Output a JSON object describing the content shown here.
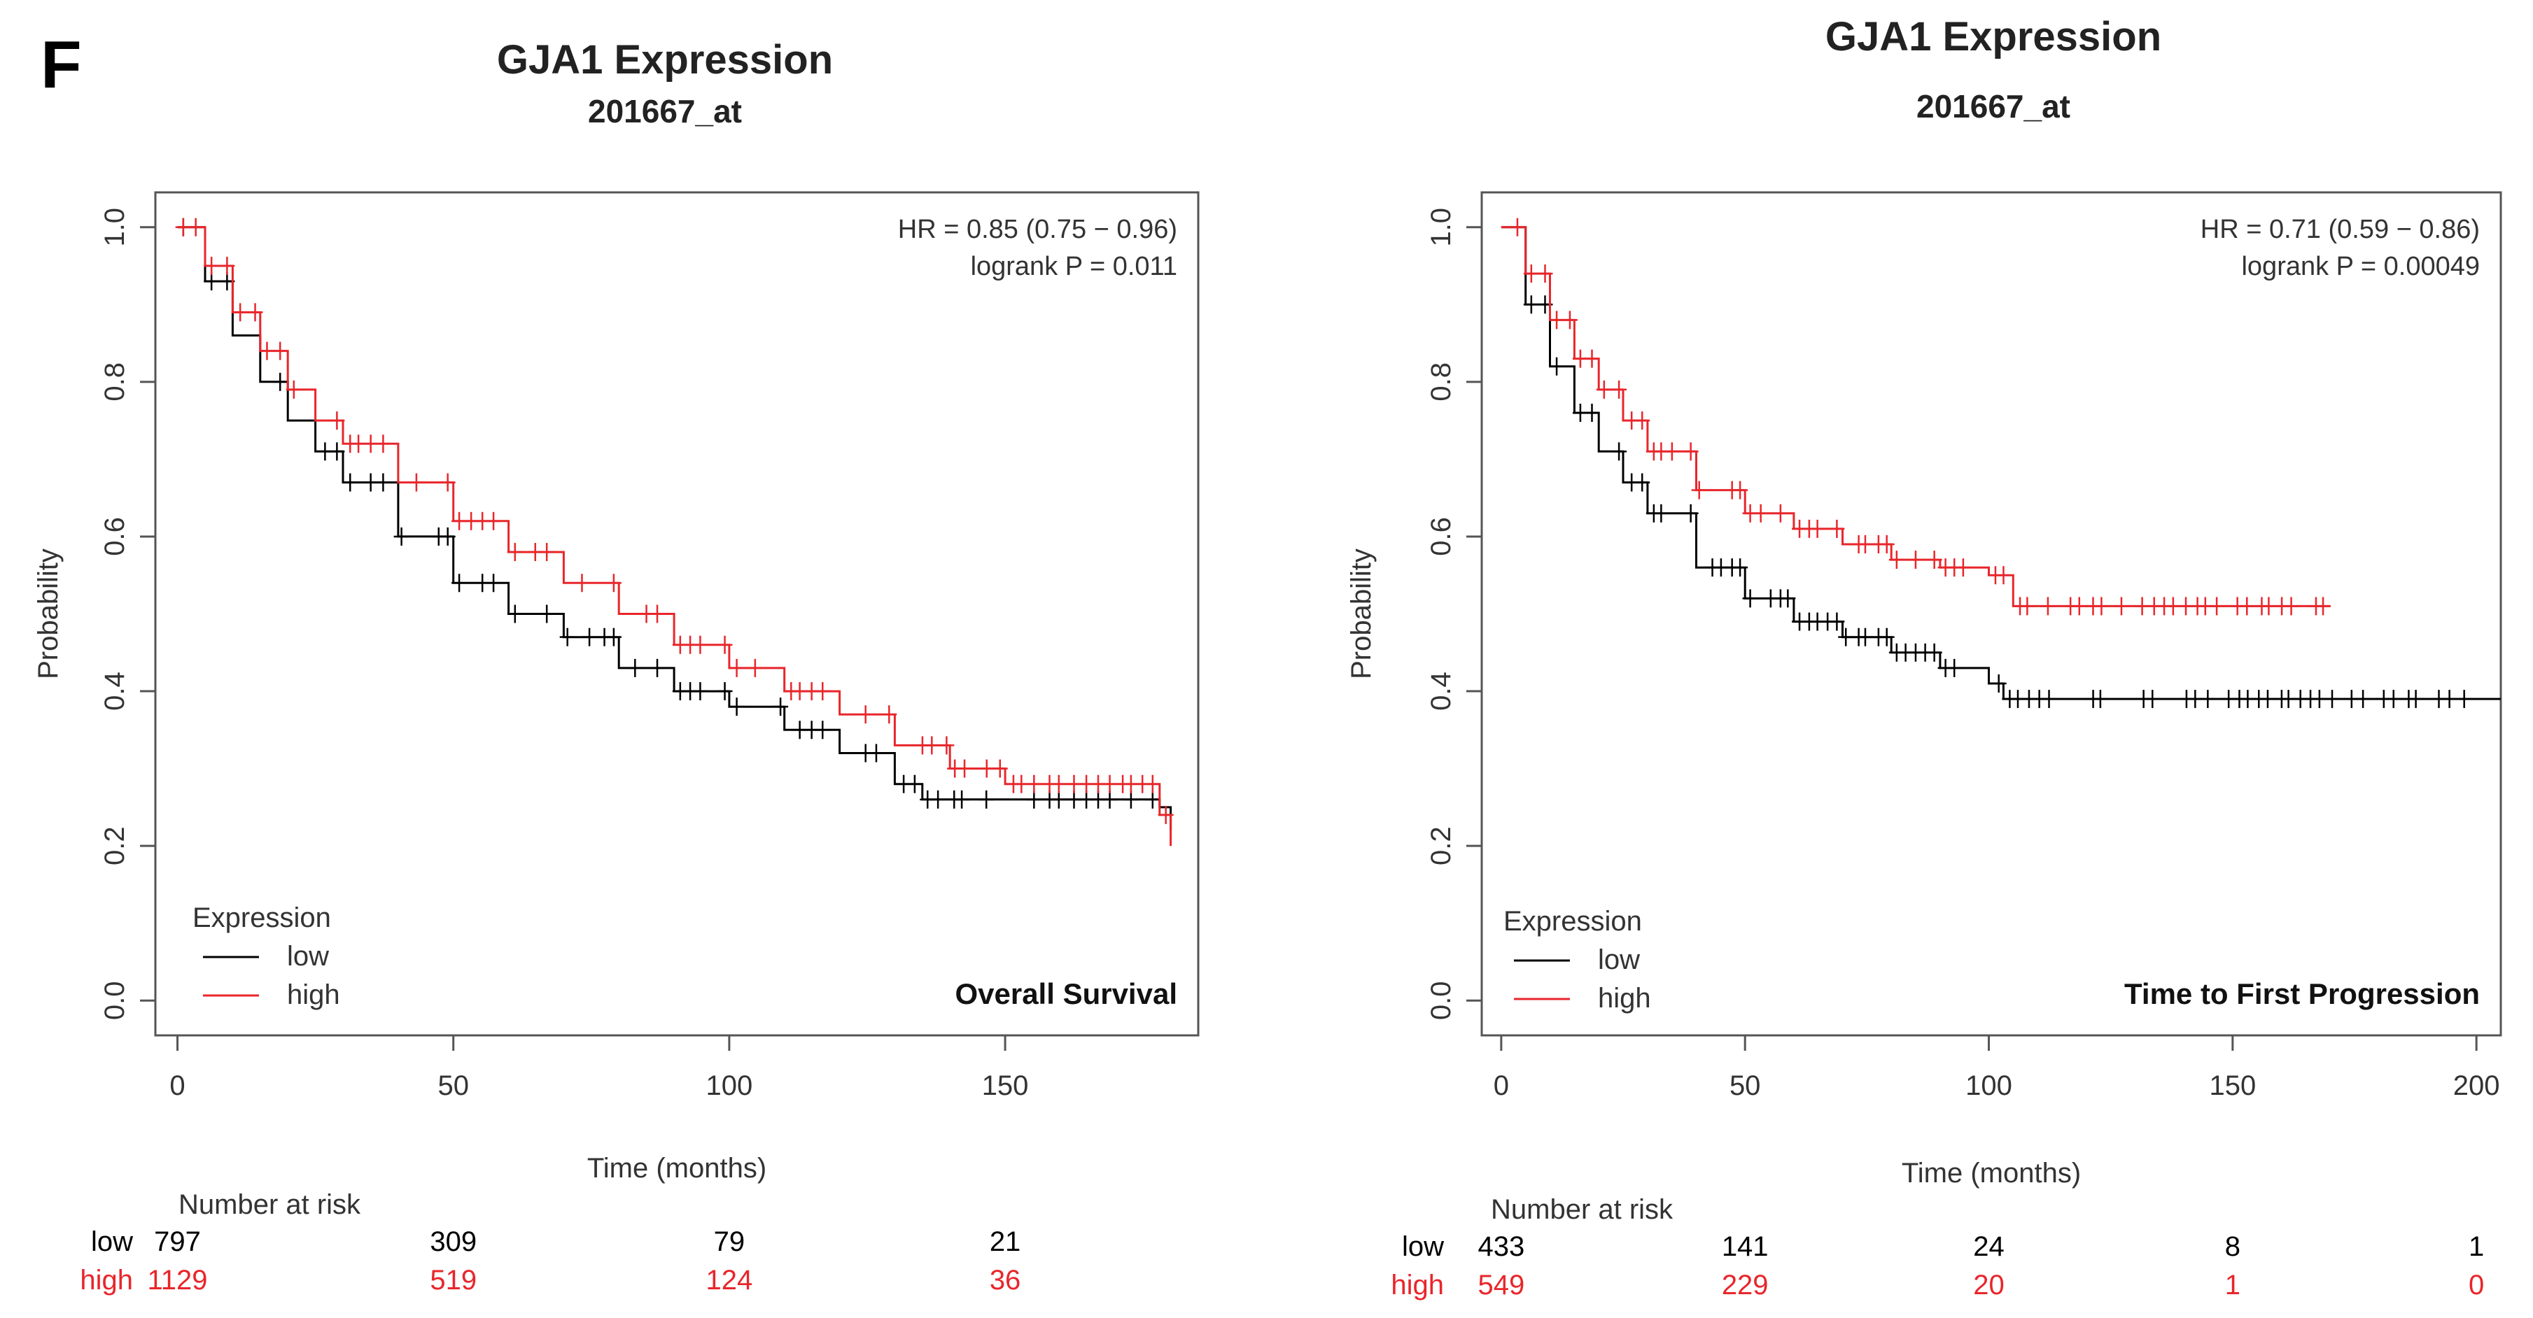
{
  "panel_label": "F",
  "chart_data": [
    {
      "type": "line",
      "subtype": "kaplan-meier",
      "title": "GJA1 Expression",
      "subtitle": "201667_at",
      "xlabel": "Time (months)",
      "ylabel": "Probability",
      "xlim": [
        0,
        185
      ],
      "ylim": [
        0,
        1.0
      ],
      "xticks": [
        "0",
        "50",
        "100",
        "150"
      ],
      "yticks": [
        "0.0",
        "0.2",
        "0.4",
        "0.6",
        "0.8",
        "1.0"
      ],
      "hr_text": "HR = 0.85 (0.75 − 0.96)",
      "p_text": "logrank P = 0.011",
      "endpoint": "Overall Survival",
      "legend": {
        "title": "Expression",
        "entries": [
          "low",
          "high"
        ],
        "position": "bottom-left"
      },
      "colors": {
        "low": "#000000",
        "high": "#e8262b"
      },
      "series": [
        {
          "name": "low",
          "x": [
            0,
            5,
            10,
            15,
            20,
            25,
            30,
            40,
            50,
            60,
            70,
            80,
            90,
            100,
            110,
            120,
            130,
            135,
            150,
            170,
            178,
            180
          ],
          "y": [
            1.0,
            0.93,
            0.86,
            0.8,
            0.75,
            0.71,
            0.67,
            0.6,
            0.54,
            0.5,
            0.47,
            0.43,
            0.4,
            0.38,
            0.35,
            0.32,
            0.28,
            0.26,
            0.26,
            0.26,
            0.25,
            0.22
          ]
        },
        {
          "name": "high",
          "x": [
            0,
            5,
            10,
            15,
            20,
            25,
            30,
            40,
            50,
            60,
            70,
            80,
            90,
            100,
            110,
            120,
            130,
            140,
            150,
            170,
            178,
            180
          ],
          "y": [
            1.0,
            0.95,
            0.89,
            0.84,
            0.79,
            0.75,
            0.72,
            0.67,
            0.62,
            0.58,
            0.54,
            0.5,
            0.46,
            0.43,
            0.4,
            0.37,
            0.33,
            0.3,
            0.28,
            0.28,
            0.24,
            0.2
          ]
        }
      ],
      "risk_table": {
        "title": "Number at risk",
        "rows": [
          {
            "name": "low",
            "counts": [
              "797",
              "309",
              "79",
              "21"
            ]
          },
          {
            "name": "high",
            "counts": [
              "1129",
              "519",
              "124",
              "36"
            ]
          }
        ]
      }
    },
    {
      "type": "line",
      "subtype": "kaplan-meier",
      "title": "GJA1 Expression",
      "subtitle": "201667_at",
      "xlabel": "Time (months)",
      "ylabel": "Probability",
      "xlim": [
        0,
        205
      ],
      "ylim": [
        0,
        1.0
      ],
      "xticks": [
        "0",
        "50",
        "100",
        "150",
        "200"
      ],
      "yticks": [
        "0.0",
        "0.2",
        "0.4",
        "0.6",
        "0.8",
        "1.0"
      ],
      "hr_text": "HR = 0.71 (0.59 − 0.86)",
      "p_text": "logrank P = 0.00049",
      "endpoint": "Time to First Progression",
      "legend": {
        "title": "Expression",
        "entries": [
          "low",
          "high"
        ],
        "position": "bottom-left"
      },
      "colors": {
        "low": "#000000",
        "high": "#e8262b"
      },
      "series": [
        {
          "name": "low",
          "x": [
            0,
            5,
            10,
            15,
            20,
            25,
            30,
            40,
            50,
            60,
            70,
            80,
            90,
            100,
            103,
            120,
            150,
            180,
            205
          ],
          "y": [
            1.0,
            0.9,
            0.82,
            0.76,
            0.71,
            0.67,
            0.63,
            0.56,
            0.52,
            0.49,
            0.47,
            0.45,
            0.43,
            0.41,
            0.39,
            0.39,
            0.39,
            0.39,
            0.39
          ]
        },
        {
          "name": "high",
          "x": [
            0,
            5,
            10,
            15,
            20,
            25,
            30,
            40,
            50,
            60,
            70,
            80,
            90,
            100,
            104,
            105,
            120,
            150,
            170
          ],
          "y": [
            1.0,
            0.94,
            0.88,
            0.83,
            0.79,
            0.75,
            0.71,
            0.66,
            0.63,
            0.61,
            0.59,
            0.57,
            0.56,
            0.55,
            0.55,
            0.51,
            0.51,
            0.51,
            0.51
          ]
        }
      ],
      "risk_table": {
        "title": "Number at risk",
        "rows": [
          {
            "name": "low",
            "counts": [
              "433",
              "141",
              "24",
              "8",
              "1"
            ]
          },
          {
            "name": "high",
            "counts": [
              "549",
              "229",
              "20",
              "1",
              "0"
            ]
          }
        ]
      }
    }
  ]
}
